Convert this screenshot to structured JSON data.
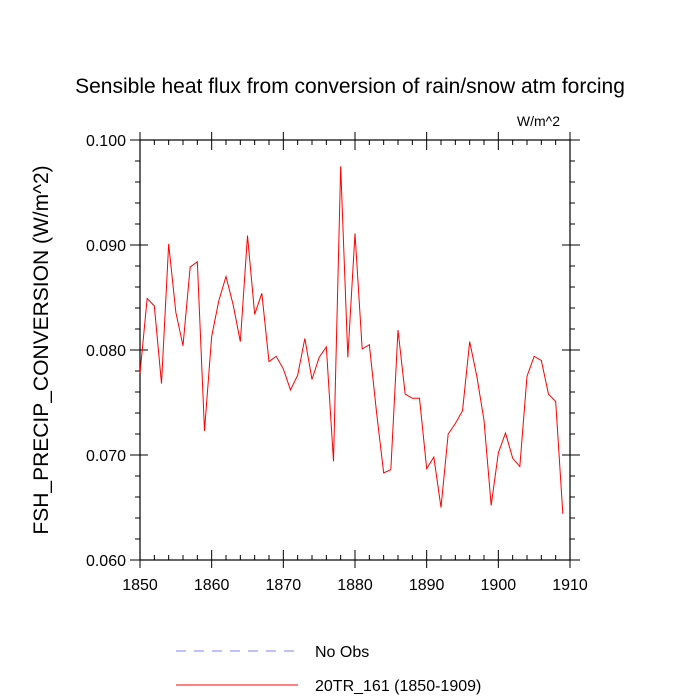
{
  "chart_data": {
    "type": "line",
    "title": "Sensible heat flux from conversion of rain/snow atm forcing",
    "units": "W/m^2",
    "xlabel": "",
    "ylabel": "FSH_PRECIP_CONVERSION  (W/m^2)",
    "xlim": [
      1850,
      1910
    ],
    "ylim": [
      0.06,
      0.1
    ],
    "xticks": [
      1850,
      1860,
      1870,
      1880,
      1890,
      1900,
      1910
    ],
    "xtick_labels": [
      "1850",
      "1860",
      "1870",
      "1880",
      "1890",
      "1900",
      "1910"
    ],
    "yticks": [
      0.06,
      0.07,
      0.08,
      0.09,
      0.1
    ],
    "ytick_labels": [
      "0.060",
      "0.070",
      "0.080",
      "0.090",
      "0.100"
    ],
    "legend_position": "bottom",
    "series": [
      {
        "name": "No Obs",
        "color": "#8080ff",
        "style": "dashed",
        "x": [],
        "values": []
      },
      {
        "name": "20TR_161 (1850-1909)",
        "color": "#ff0000",
        "style": "solid",
        "x": [
          1850,
          1851,
          1852,
          1853,
          1854,
          1855,
          1856,
          1857,
          1858,
          1859,
          1860,
          1861,
          1862,
          1863,
          1864,
          1865,
          1866,
          1867,
          1868,
          1869,
          1870,
          1871,
          1872,
          1873,
          1874,
          1875,
          1876,
          1877,
          1878,
          1879,
          1880,
          1881,
          1882,
          1883,
          1884,
          1885,
          1886,
          1887,
          1888,
          1889,
          1890,
          1891,
          1892,
          1893,
          1894,
          1895,
          1896,
          1897,
          1898,
          1899,
          1900,
          1901,
          1902,
          1903,
          1904,
          1905,
          1906,
          1907,
          1908,
          1909
        ],
        "values": [
          0.0778,
          0.0849,
          0.0842,
          0.0768,
          0.0901,
          0.0836,
          0.0804,
          0.0879,
          0.0884,
          0.0723,
          0.0813,
          0.0847,
          0.087,
          0.0843,
          0.0808,
          0.0909,
          0.0834,
          0.0854,
          0.0789,
          0.0794,
          0.0782,
          0.0762,
          0.0776,
          0.0811,
          0.0772,
          0.0793,
          0.0803,
          0.0694,
          0.0975,
          0.0793,
          0.0911,
          0.0801,
          0.0805,
          0.0741,
          0.0683,
          0.0686,
          0.0819,
          0.0758,
          0.0754,
          0.0754,
          0.0687,
          0.0698,
          0.065,
          0.072,
          0.073,
          0.0742,
          0.0808,
          0.0775,
          0.0733,
          0.0652,
          0.0702,
          0.0721,
          0.0697,
          0.0689,
          0.0775,
          0.0794,
          0.079,
          0.0758,
          0.0751,
          0.0644
        ]
      }
    ]
  }
}
